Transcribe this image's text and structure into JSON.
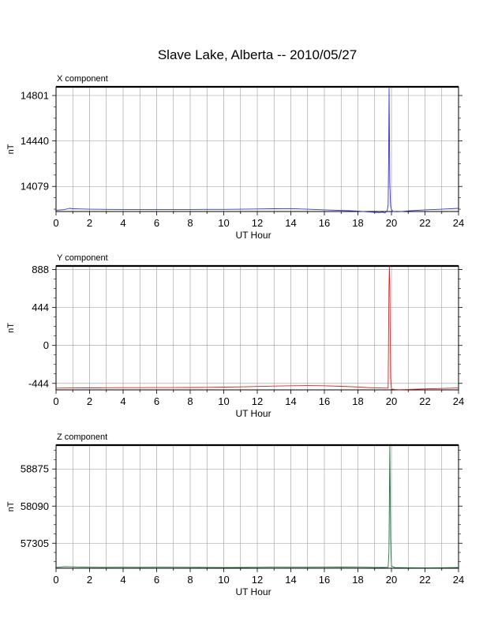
{
  "title": "Slave Lake, Alberta -- 2010/05/27",
  "chart_data": [
    {
      "type": "line",
      "panel_label": "X component",
      "xlabel": "UT Hour",
      "ylabel": "nT",
      "xlim": [
        0,
        24
      ],
      "ylim": [
        13880,
        14870
      ],
      "xticks": [
        0,
        2,
        4,
        6,
        8,
        10,
        12,
        14,
        16,
        18,
        20,
        22,
        24
      ],
      "yticks": [
        14079,
        14440,
        14801
      ],
      "grid": true,
      "color": "#3333cc",
      "series": [
        {
          "x": [
            0,
            0.5,
            0.8,
            1.0,
            1.5,
            2,
            3,
            4,
            5,
            6,
            7,
            8,
            9,
            10,
            11,
            12,
            13,
            14,
            15,
            16,
            17,
            18,
            18.5,
            19,
            19.3,
            19.5,
            19.6,
            19.7,
            19.75,
            19.8,
            19.83,
            19.86,
            19.9,
            19.95,
            20.0,
            20.1,
            20.3,
            20.6,
            21,
            22,
            23,
            24
          ],
          "y": [
            13890,
            13895,
            13905,
            13902,
            13900,
            13898,
            13897,
            13896,
            13896,
            13895,
            13895,
            13896,
            13897,
            13897,
            13898,
            13900,
            13902,
            13903,
            13898,
            13893,
            13889,
            13883,
            13878,
            13874,
            13872,
            13875,
            13868,
            13878,
            13890,
            13930,
            14280,
            14860,
            14100,
            13925,
            13895,
            13880,
            13878,
            13880,
            13885,
            13893,
            13898,
            13905
          ]
        }
      ]
    },
    {
      "type": "line",
      "panel_label": "Y component",
      "xlabel": "UT Hour",
      "ylabel": "nT",
      "xlim": [
        0,
        24
      ],
      "ylim": [
        -520,
        930
      ],
      "xticks": [
        0,
        2,
        4,
        6,
        8,
        10,
        12,
        14,
        16,
        18,
        20,
        22,
        24
      ],
      "yticks": [
        -444,
        0,
        444,
        888
      ],
      "grid": true,
      "color": "#dd2222",
      "series": [
        {
          "x": [
            0,
            1,
            2,
            3,
            4,
            5,
            6,
            7,
            8,
            9,
            10,
            11,
            12,
            13,
            14,
            15,
            16,
            17,
            18,
            18.5,
            19,
            19.5,
            19.8,
            19.85,
            19.88,
            19.9,
            19.92,
            19.95,
            20.0,
            20.2,
            20.5,
            21,
            22,
            23,
            24
          ],
          "y": [
            -500,
            -498,
            -497,
            -495,
            -494,
            -494,
            -493,
            -493,
            -492,
            -490,
            -488,
            -485,
            -480,
            -476,
            -472,
            -470,
            -472,
            -478,
            -486,
            -492,
            -496,
            -499,
            -500,
            640,
            920,
            760,
            300,
            -380,
            -510,
            -515,
            -518,
            -515,
            -508,
            -503,
            -498
          ]
        }
      ]
    },
    {
      "type": "line",
      "panel_label": "Z component",
      "xlabel": "UT Hour",
      "ylabel": "nT",
      "xlim": [
        0,
        24
      ],
      "ylim": [
        56775,
        59380
      ],
      "xticks": [
        0,
        2,
        4,
        6,
        8,
        10,
        12,
        14,
        16,
        18,
        20,
        22,
        24
      ],
      "yticks": [
        57305,
        58090,
        58875
      ],
      "grid": true,
      "color": "#227744",
      "series": [
        {
          "x": [
            0,
            0.5,
            1,
            2,
            3,
            4,
            5,
            6,
            7,
            8,
            9,
            10,
            11,
            12,
            13,
            14,
            15,
            16,
            17,
            18,
            19,
            19.5,
            19.8,
            19.85,
            19.88,
            19.9,
            19.92,
            19.95,
            20.0,
            20.2,
            21,
            22,
            23,
            24
          ],
          "y": [
            56790,
            56810,
            56805,
            56797,
            56795,
            56796,
            56795,
            56796,
            56797,
            56795,
            56793,
            56790,
            56792,
            56795,
            56798,
            56797,
            56796,
            56798,
            56800,
            56798,
            56794,
            56792,
            56795,
            57100,
            58300,
            59360,
            58700,
            57400,
            56820,
            56790,
            56787,
            56785,
            56787,
            56790
          ]
        }
      ]
    }
  ]
}
